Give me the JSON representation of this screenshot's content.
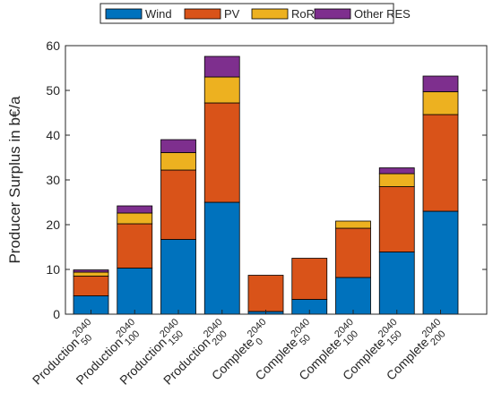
{
  "chart_data": {
    "type": "bar",
    "stacked": true,
    "ylabel": "Producer Surplus in b€/a",
    "ylim": [
      0,
      60
    ],
    "yticks": [
      0,
      10,
      20,
      30,
      40,
      50,
      60
    ],
    "legend_position": "top-center",
    "grid": false,
    "categories": [
      {
        "base": "Production",
        "sup": "2040",
        "sub": "50"
      },
      {
        "base": "Production",
        "sup": "2040",
        "sub": "100"
      },
      {
        "base": "Production",
        "sup": "2040",
        "sub": "150"
      },
      {
        "base": "Production",
        "sup": "2040",
        "sub": "200"
      },
      {
        "base": "Complete",
        "sup": "2040",
        "sub": "0"
      },
      {
        "base": "Complete",
        "sup": "2040",
        "sub": "50"
      },
      {
        "base": "Complete",
        "sup": "2040",
        "sub": "100"
      },
      {
        "base": "Complete",
        "sup": "2040",
        "sub": "150"
      },
      {
        "base": "Complete",
        "sup": "2040",
        "sub": "200"
      }
    ],
    "series": [
      {
        "name": "Wind",
        "color": "#0072BD",
        "values": [
          4.1,
          10.3,
          16.7,
          25.0,
          0.6,
          3.3,
          8.2,
          13.9,
          23.0
        ]
      },
      {
        "name": "PV",
        "color": "#D95319",
        "values": [
          4.4,
          9.9,
          15.5,
          22.2,
          8.1,
          9.2,
          11.0,
          14.6,
          21.6
        ]
      },
      {
        "name": "RoR",
        "color": "#EDB120",
        "values": [
          0.9,
          2.4,
          3.9,
          5.8,
          0.0,
          0.0,
          1.6,
          2.9,
          5.1
        ]
      },
      {
        "name": "Other RES",
        "color": "#7E2F8E",
        "values": [
          0.5,
          1.6,
          2.9,
          4.6,
          0.0,
          0.0,
          0.0,
          1.3,
          3.5
        ]
      }
    ]
  }
}
